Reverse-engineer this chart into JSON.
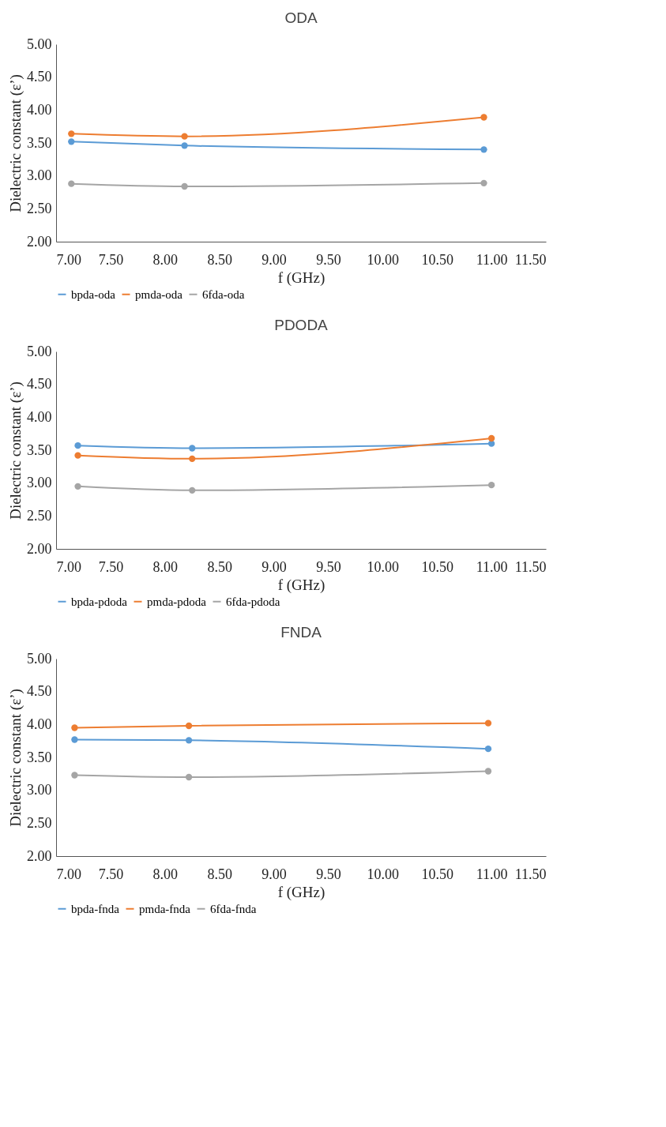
{
  "chart_data": [
    {
      "type": "line",
      "title": "ODA",
      "xlabel": "f (GHz)",
      "ylabel": "Dielectric constant (ε’)",
      "x": [
        7.14,
        8.18,
        10.93
      ],
      "legend": "bottom",
      "marker": "circle",
      "xlim": [
        7,
        11.5
      ],
      "ylim": [
        2,
        5
      ],
      "xticks": [
        {
          "value": 7,
          "label": "7.00"
        },
        {
          "value": 7.5,
          "label": "7.50"
        },
        {
          "value": 8,
          "label": "8.00"
        },
        {
          "value": 8.5,
          "label": "8.50"
        },
        {
          "value": 9,
          "label": "9.00"
        },
        {
          "value": 9.5,
          "label": "9.50"
        },
        {
          "value": 10,
          "label": "10.00"
        },
        {
          "value": 10.5,
          "label": "10.50"
        },
        {
          "value": 11,
          "label": "11.00"
        },
        {
          "value": 11.5,
          "label": "11.50"
        }
      ],
      "yticks": [
        {
          "value": 2,
          "label": "2.00"
        },
        {
          "value": 2.5,
          "label": "2.50"
        },
        {
          "value": 3,
          "label": "3.00"
        },
        {
          "value": 3.5,
          "label": "3.50"
        },
        {
          "value": 4,
          "label": "4.00"
        },
        {
          "value": 4.5,
          "label": "4.50"
        },
        {
          "value": 5,
          "label": "5.00"
        }
      ],
      "series": [
        {
          "name": "bpda-oda",
          "color": "#5b9bd5",
          "values": [
            3.52,
            3.46,
            3.4
          ]
        },
        {
          "name": "pmda-oda",
          "color": "#ed7d31",
          "values": [
            3.64,
            3.6,
            3.89
          ]
        },
        {
          "name": "6fda-oda",
          "color": "#a5a5a5",
          "values": [
            2.88,
            2.84,
            2.89
          ]
        }
      ]
    },
    {
      "type": "line",
      "title": "PDODA",
      "xlabel": "f (GHz)",
      "ylabel": "Dielectric constant (ε’)",
      "x": [
        7.2,
        8.25,
        11.0
      ],
      "legend": "bottom",
      "marker": "circle",
      "xlim": [
        7,
        11.5
      ],
      "ylim": [
        2,
        5
      ],
      "xticks": [
        {
          "value": 7,
          "label": "7.00"
        },
        {
          "value": 7.5,
          "label": "7.50"
        },
        {
          "value": 8,
          "label": "8.00"
        },
        {
          "value": 8.5,
          "label": "8.50"
        },
        {
          "value": 9,
          "label": "9.00"
        },
        {
          "value": 9.5,
          "label": "9.50"
        },
        {
          "value": 10,
          "label": "10.00"
        },
        {
          "value": 10.5,
          "label": "10.50"
        },
        {
          "value": 11,
          "label": "11.00"
        },
        {
          "value": 11.5,
          "label": "11.50"
        }
      ],
      "yticks": [
        {
          "value": 2,
          "label": "2.00"
        },
        {
          "value": 2.5,
          "label": "2.50"
        },
        {
          "value": 3,
          "label": "3.00"
        },
        {
          "value": 3.5,
          "label": "3.50"
        },
        {
          "value": 4,
          "label": "4.00"
        },
        {
          "value": 4.5,
          "label": "4.50"
        },
        {
          "value": 5,
          "label": "5.00"
        }
      ],
      "series": [
        {
          "name": "bpda-pdoda",
          "color": "#5b9bd5",
          "values": [
            3.57,
            3.53,
            3.6
          ]
        },
        {
          "name": "pmda-pdoda",
          "color": "#ed7d31",
          "values": [
            3.42,
            3.37,
            3.68
          ]
        },
        {
          "name": "6fda-pdoda",
          "color": "#a5a5a5",
          "values": [
            2.95,
            2.89,
            2.97
          ]
        }
      ]
    },
    {
      "type": "line",
      "title": "FNDA",
      "xlabel": "f (GHz)",
      "ylabel": "Dielectric constant (ε’)",
      "x": [
        7.17,
        8.22,
        10.97
      ],
      "legend": "bottom",
      "marker": "circle",
      "xlim": [
        7,
        11.5
      ],
      "ylim": [
        2,
        5
      ],
      "xticks": [
        {
          "value": 7,
          "label": "7.00"
        },
        {
          "value": 7.5,
          "label": "7.50"
        },
        {
          "value": 8,
          "label": "8.00"
        },
        {
          "value": 8.5,
          "label": "8.50"
        },
        {
          "value": 9,
          "label": "9.00"
        },
        {
          "value": 9.5,
          "label": "9.50"
        },
        {
          "value": 10,
          "label": "10.00"
        },
        {
          "value": 10.5,
          "label": "10.50"
        },
        {
          "value": 11,
          "label": "11.00"
        },
        {
          "value": 11.5,
          "label": "11.50"
        }
      ],
      "yticks": [
        {
          "value": 2,
          "label": "2.00"
        },
        {
          "value": 2.5,
          "label": "2.50"
        },
        {
          "value": 3,
          "label": "3.00"
        },
        {
          "value": 3.5,
          "label": "3.50"
        },
        {
          "value": 4,
          "label": "4.00"
        },
        {
          "value": 4.5,
          "label": "4.50"
        },
        {
          "value": 5,
          "label": "5.00"
        }
      ],
      "series": [
        {
          "name": "bpda-fnda",
          "color": "#5b9bd5",
          "values": [
            3.77,
            3.76,
            3.63
          ]
        },
        {
          "name": "pmda-fnda",
          "color": "#ed7d31",
          "values": [
            3.95,
            3.98,
            4.02
          ]
        },
        {
          "name": "6fda-fnda",
          "color": "#a5a5a5",
          "values": [
            3.23,
            3.2,
            3.29
          ]
        }
      ]
    }
  ]
}
